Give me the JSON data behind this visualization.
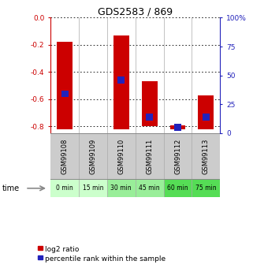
{
  "title": "GDS2583 / 869",
  "samples": [
    "GSM99108",
    "GSM99109",
    "GSM99110",
    "GSM99111",
    "GSM99112",
    "GSM99113"
  ],
  "time_labels": [
    "0 min",
    "15 min",
    "30 min",
    "45 min",
    "60 min",
    "75 min"
  ],
  "log2_tops": [
    -0.18,
    0.0,
    -0.13,
    -0.47,
    -0.79,
    -0.57
  ],
  "log2_bottoms": [
    -0.82,
    0.0,
    -0.82,
    -0.8,
    -0.82,
    -0.82
  ],
  "percentile_values": [
    34,
    0,
    46,
    14,
    5,
    14
  ],
  "bar_color_red": "#cc0000",
  "bar_color_blue": "#2222bb",
  "ylim_left": [
    -0.85,
    0.0
  ],
  "ylim_right": [
    0,
    100
  ],
  "yticks_left": [
    0.0,
    -0.2,
    -0.4,
    -0.6,
    -0.8
  ],
  "yticks_right": [
    0,
    25,
    50,
    75,
    100
  ],
  "bg_color": "#ffffff",
  "label_area_color": "#cccccc",
  "time_colors": [
    "#ccffcc",
    "#ccffcc",
    "#99ee99",
    "#99ee99",
    "#55dd55",
    "#55dd55"
  ],
  "legend_log2": "log2 ratio",
  "legend_pct": "percentile rank within the sample",
  "time_arrow_text": "time"
}
